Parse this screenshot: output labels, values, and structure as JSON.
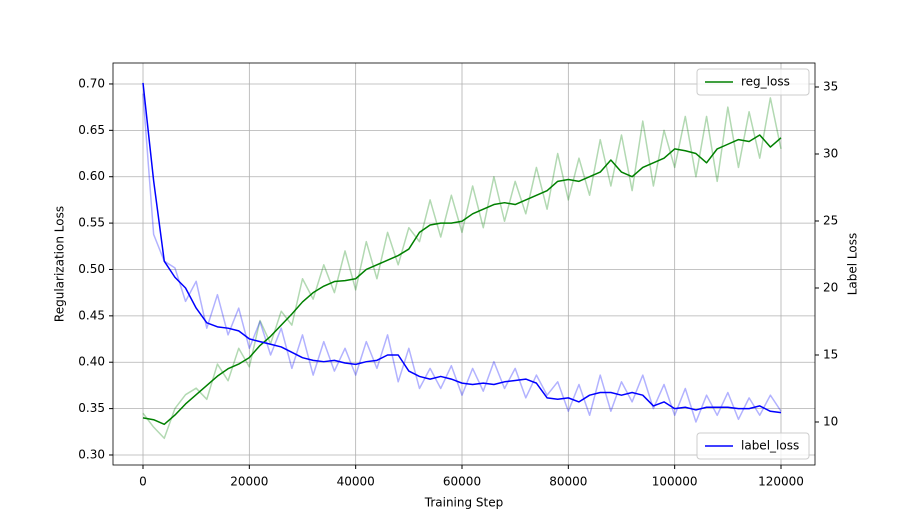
{
  "chart_data": {
    "type": "line",
    "xlabel": "Training Step",
    "ylabel": "Regularization Loss",
    "y2label": "Label Loss",
    "x": [
      0,
      2000,
      4000,
      6000,
      8000,
      10000,
      12000,
      14000,
      16000,
      18000,
      20000,
      22000,
      24000,
      26000,
      28000,
      30000,
      32000,
      34000,
      36000,
      38000,
      40000,
      42000,
      44000,
      46000,
      48000,
      50000,
      52000,
      54000,
      56000,
      58000,
      60000,
      62000,
      64000,
      66000,
      68000,
      70000,
      72000,
      74000,
      76000,
      78000,
      80000,
      82000,
      84000,
      86000,
      88000,
      90000,
      92000,
      94000,
      96000,
      98000,
      100000,
      102000,
      104000,
      106000,
      108000,
      110000,
      112000,
      114000,
      116000,
      118000,
      120000
    ],
    "series": [
      {
        "color": "green",
        "opacity": 0.3,
        "axis": "y",
        "values": [
          0.345,
          0.33,
          0.318,
          0.35,
          0.365,
          0.372,
          0.36,
          0.398,
          0.38,
          0.415,
          0.395,
          0.445,
          0.42,
          0.455,
          0.44,
          0.49,
          0.468,
          0.505,
          0.475,
          0.52,
          0.478,
          0.53,
          0.49,
          0.54,
          0.505,
          0.545,
          0.53,
          0.575,
          0.535,
          0.58,
          0.54,
          0.59,
          0.545,
          0.6,
          0.552,
          0.595,
          0.56,
          0.61,
          0.565,
          0.625,
          0.575,
          0.62,
          0.58,
          0.64,
          0.59,
          0.645,
          0.585,
          0.66,
          0.59,
          0.65,
          0.61,
          0.665,
          0.6,
          0.665,
          0.595,
          0.675,
          0.61,
          0.67,
          0.62,
          0.685,
          0.63
        ]
      },
      {
        "color": "blue",
        "opacity": 0.3,
        "axis": "y2",
        "values": [
          34.5,
          24,
          22,
          21.5,
          19,
          20.5,
          17,
          19.5,
          16.5,
          18.5,
          15.5,
          17.5,
          15,
          17,
          14,
          16.5,
          13.5,
          16,
          13.8,
          15.5,
          13.5,
          16,
          14,
          16.5,
          13,
          15.5,
          12.5,
          14,
          12.5,
          14.2,
          12,
          14,
          12.3,
          14.5,
          12.5,
          14,
          11.8,
          13.5,
          12,
          13,
          10.8,
          12.8,
          10.5,
          13.5,
          10.8,
          13,
          11.5,
          13.5,
          11,
          12.8,
          10.5,
          12.5,
          10,
          12,
          10.5,
          12.2,
          10.2,
          11.8,
          10.5,
          12,
          10.8
        ]
      },
      {
        "name": "reg_loss",
        "color": "green",
        "axis": "y",
        "legend": "upper right",
        "values": [
          0.34,
          0.338,
          0.333,
          0.343,
          0.355,
          0.365,
          0.375,
          0.385,
          0.393,
          0.398,
          0.405,
          0.418,
          0.428,
          0.44,
          0.452,
          0.465,
          0.475,
          0.482,
          0.487,
          0.488,
          0.49,
          0.5,
          0.505,
          0.51,
          0.515,
          0.522,
          0.54,
          0.548,
          0.55,
          0.55,
          0.552,
          0.56,
          0.565,
          0.57,
          0.572,
          0.57,
          0.575,
          0.58,
          0.585,
          0.595,
          0.597,
          0.595,
          0.6,
          0.605,
          0.618,
          0.605,
          0.6,
          0.61,
          0.615,
          0.62,
          0.63,
          0.628,
          0.625,
          0.615,
          0.63,
          0.635,
          0.64,
          0.638,
          0.645,
          0.632,
          0.642
        ]
      },
      {
        "name": "label_loss",
        "color": "blue",
        "axis": "y2",
        "legend": "lower right",
        "values": [
          35.3,
          28,
          22,
          20.8,
          20,
          18.5,
          17.4,
          17.1,
          17.0,
          16.8,
          16.2,
          16.0,
          15.8,
          15.6,
          15.2,
          14.8,
          14.6,
          14.5,
          14.6,
          14.4,
          14.3,
          14.5,
          14.6,
          15.0,
          15.0,
          13.8,
          13.4,
          13.2,
          13.4,
          13.2,
          12.9,
          12.8,
          12.9,
          12.8,
          13.0,
          13.1,
          13.2,
          12.9,
          11.8,
          11.7,
          11.8,
          11.5,
          12.0,
          12.2,
          12.2,
          12.0,
          12.2,
          12.0,
          11.2,
          11.5,
          11.0,
          11.1,
          10.9,
          11.1,
          11.1,
          11.1,
          11.0,
          11.0,
          11.2,
          10.8,
          10.7
        ]
      }
    ],
    "xlim": [
      -5643,
      126395
    ],
    "xticks": [
      0,
      20000,
      40000,
      60000,
      80000,
      100000,
      120000
    ],
    "ylim": [
      0.2892,
      0.7226
    ],
    "yticks": [
      {
        "value": 0.3,
        "label": "0.30"
      },
      0.35,
      {
        "value": 0.4,
        "label": "0.40"
      },
      0.45,
      {
        "value": 0.5,
        "label": "0.50"
      },
      0.55,
      {
        "value": 0.6,
        "label": "0.60"
      },
      0.65,
      {
        "value": 0.7,
        "label": "0.70"
      }
    ],
    "y2lim": [
      6.79,
      36.79
    ],
    "y2ticks": [
      10,
      15,
      20,
      25,
      30,
      35
    ],
    "grid": true
  }
}
